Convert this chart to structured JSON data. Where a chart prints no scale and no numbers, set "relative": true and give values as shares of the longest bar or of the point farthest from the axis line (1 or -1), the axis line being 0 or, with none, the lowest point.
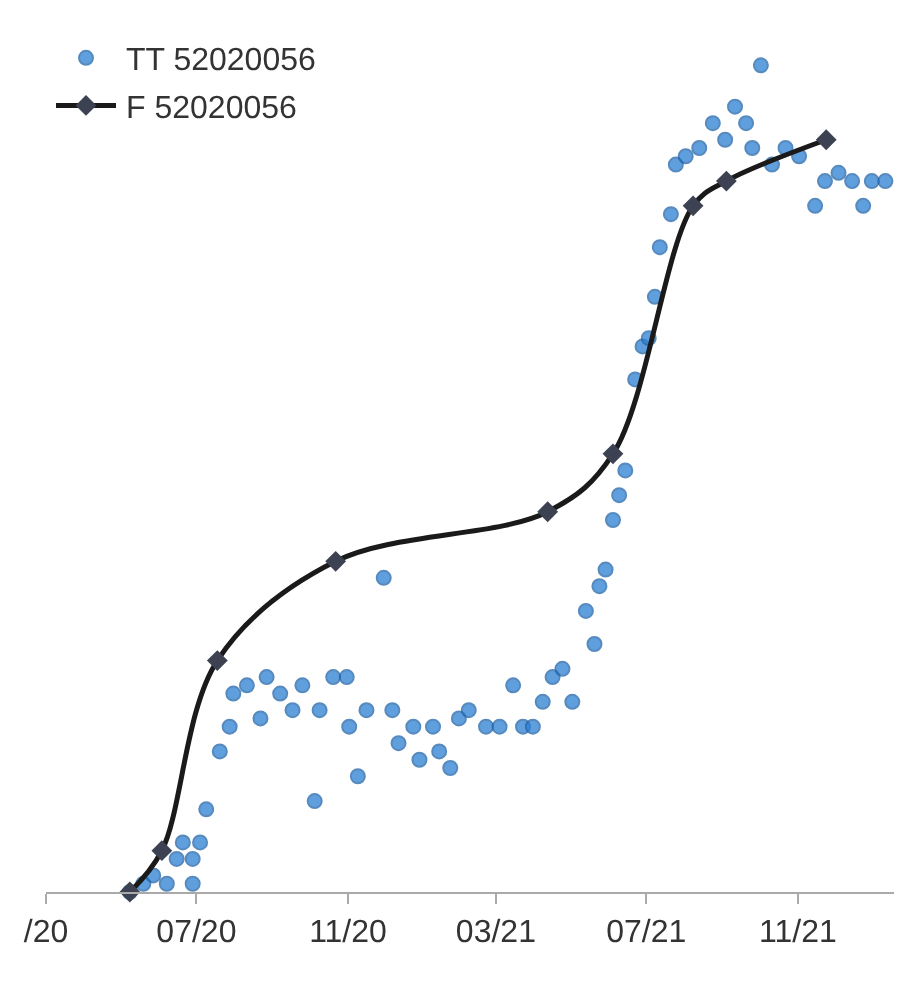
{
  "chart_data": {
    "type": "scatter",
    "relative": true,
    "legend": "top left",
    "xlim": [
      "2020-03-01",
      "2022-01-18"
    ],
    "xticks": [
      {
        "value": "2020-03-01",
        "label": "/20"
      },
      {
        "value": "2020-07-01",
        "label": "07/20"
      },
      {
        "value": "2020-11-01",
        "label": "11/20"
      },
      {
        "value": "2021-03-01",
        "label": "03/21"
      },
      {
        "value": "2021-07-01",
        "label": "07/21"
      },
      {
        "value": "2021-11-01",
        "label": "11/21"
      }
    ],
    "series": [
      {
        "name": "TT 52020056",
        "marker": "circle",
        "color": "#2b7fd4",
        "x": [
          "2020-05-08",
          "2020-05-19",
          "2020-05-27",
          "2020-06-07",
          "2020-06-15",
          "2020-06-20",
          "2020-06-28",
          "2020-06-28",
          "2020-07-04",
          "2020-07-09",
          "2020-07-20",
          "2020-07-28",
          "2020-07-31",
          "2020-08-11",
          "2020-08-22",
          "2020-08-27",
          "2020-09-07",
          "2020-09-17",
          "2020-09-25",
          "2020-10-05",
          "2020-10-09",
          "2020-10-20",
          "2020-10-31",
          "2020-11-02",
          "2020-11-09",
          "2020-11-16",
          "2020-11-30",
          "2020-12-07",
          "2020-12-12",
          "2020-12-24",
          "2020-12-29",
          "2021-01-09",
          "2021-01-14",
          "2021-01-23",
          "2021-01-30",
          "2021-02-07",
          "2021-02-21",
          "2021-03-04",
          "2021-03-15",
          "2021-03-23",
          "2021-03-31",
          "2021-04-08",
          "2021-04-16",
          "2021-04-24",
          "2021-05-02",
          "2021-05-13",
          "2021-05-20",
          "2021-05-24",
          "2021-05-29",
          "2021-06-04",
          "2021-06-09",
          "2021-06-14",
          "2021-06-22",
          "2021-06-28",
          "2021-07-03",
          "2021-07-08",
          "2021-07-12",
          "2021-07-21",
          "2021-07-25",
          "2021-08-02",
          "2021-08-13",
          "2021-08-24",
          "2021-09-03",
          "2021-09-11",
          "2021-09-20",
          "2021-09-25",
          "2021-10-02",
          "2021-10-11",
          "2021-10-22",
          "2021-11-02",
          "2021-11-15",
          "2021-11-23",
          "2021-12-04",
          "2021-12-15",
          "2021-12-24",
          "2021-12-31",
          "2022-01-11"
        ],
        "values": [
          0.0,
          0.01,
          0.02,
          0.01,
          0.04,
          0.06,
          0.04,
          0.01,
          0.06,
          0.1,
          0.17,
          0.2,
          0.24,
          0.25,
          0.21,
          0.26,
          0.24,
          0.22,
          0.25,
          0.11,
          0.22,
          0.26,
          0.26,
          0.2,
          0.14,
          0.22,
          0.38,
          0.22,
          0.18,
          0.2,
          0.16,
          0.2,
          0.17,
          0.15,
          0.21,
          0.22,
          0.2,
          0.2,
          0.25,
          0.2,
          0.2,
          0.23,
          0.26,
          0.27,
          0.23,
          0.34,
          0.3,
          0.37,
          0.39,
          0.45,
          0.48,
          0.51,
          0.62,
          0.66,
          0.67,
          0.72,
          0.78,
          0.82,
          0.88,
          0.89,
          0.9,
          0.93,
          0.91,
          0.95,
          0.93,
          0.9,
          1.0,
          0.88,
          0.9,
          0.89,
          0.83,
          0.86,
          0.87,
          0.86,
          0.83,
          0.86,
          0.86
        ]
      },
      {
        "name": "F 52020056",
        "type": "line",
        "marker": "diamond",
        "line_style": "solid",
        "color": "#1a1a1a",
        "x": [
          "2020-05-08",
          "2020-06-03",
          "2020-07-18",
          "2020-10-22",
          "2021-04-12",
          "2021-06-04",
          "2021-08-08",
          "2021-09-04",
          "2021-11-24"
        ],
        "values": [
          0.0,
          0.05,
          0.28,
          0.4,
          0.46,
          0.53,
          0.83,
          0.86,
          0.91
        ]
      }
    ]
  }
}
